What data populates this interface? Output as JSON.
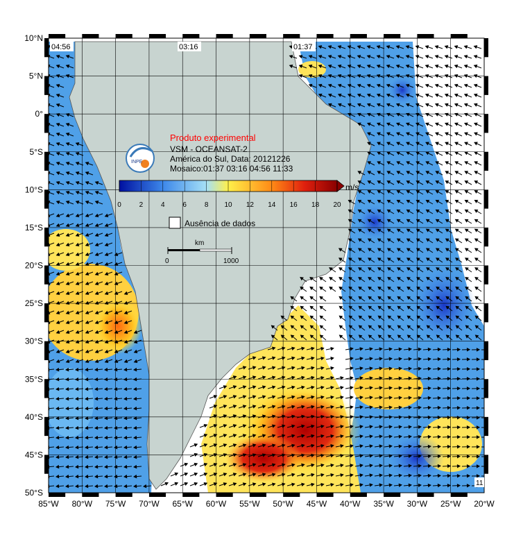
{
  "map": {
    "lon_ticks": [
      "85°W",
      "80°W",
      "75°W",
      "70°W",
      "65°W",
      "60°W",
      "55°W",
      "50°W",
      "45°W",
      "40°W",
      "35°W",
      "30°W",
      "25°W",
      "20°W"
    ],
    "lat_ticks": [
      "10°N",
      "5°N",
      "0°",
      "5°S",
      "10°S",
      "15°S",
      "20°S",
      "25°S",
      "30°S",
      "35°S",
      "40°S",
      "45°S",
      "50°S"
    ],
    "pass_times": [
      "04:56",
      "03:16",
      "01:37"
    ],
    "corner_label": "11",
    "colors": {
      "land": "#c8d4d0",
      "ocean_default": "#4fa0e8"
    }
  },
  "info": {
    "experimental": "Produto experimental",
    "product": "VSM - OCEANSAT-2",
    "region_date": "América do Sul, Data: 20121226",
    "mosaic": "Mosaico:01:37 03:16 04:56 11:33",
    "logo_text": "INPE"
  },
  "colorbar": {
    "unit": "m/s",
    "ticks": [
      "0",
      "2",
      "4",
      "6",
      "8",
      "10",
      "12",
      "14",
      "16",
      "18",
      "20"
    ],
    "colors": [
      "#0010a0",
      "#1f4fd6",
      "#3d88ea",
      "#6ab8f2",
      "#a6e0f6",
      "#e8f8c0",
      "#fff04a",
      "#ffc822",
      "#ff8a16",
      "#ff3f10",
      "#c80a0a",
      "#8a0000"
    ]
  },
  "legend": {
    "no_data_label": "Ausência de dados"
  },
  "scale_bar": {
    "unit": "km",
    "start": "0",
    "end": "1000"
  }
}
